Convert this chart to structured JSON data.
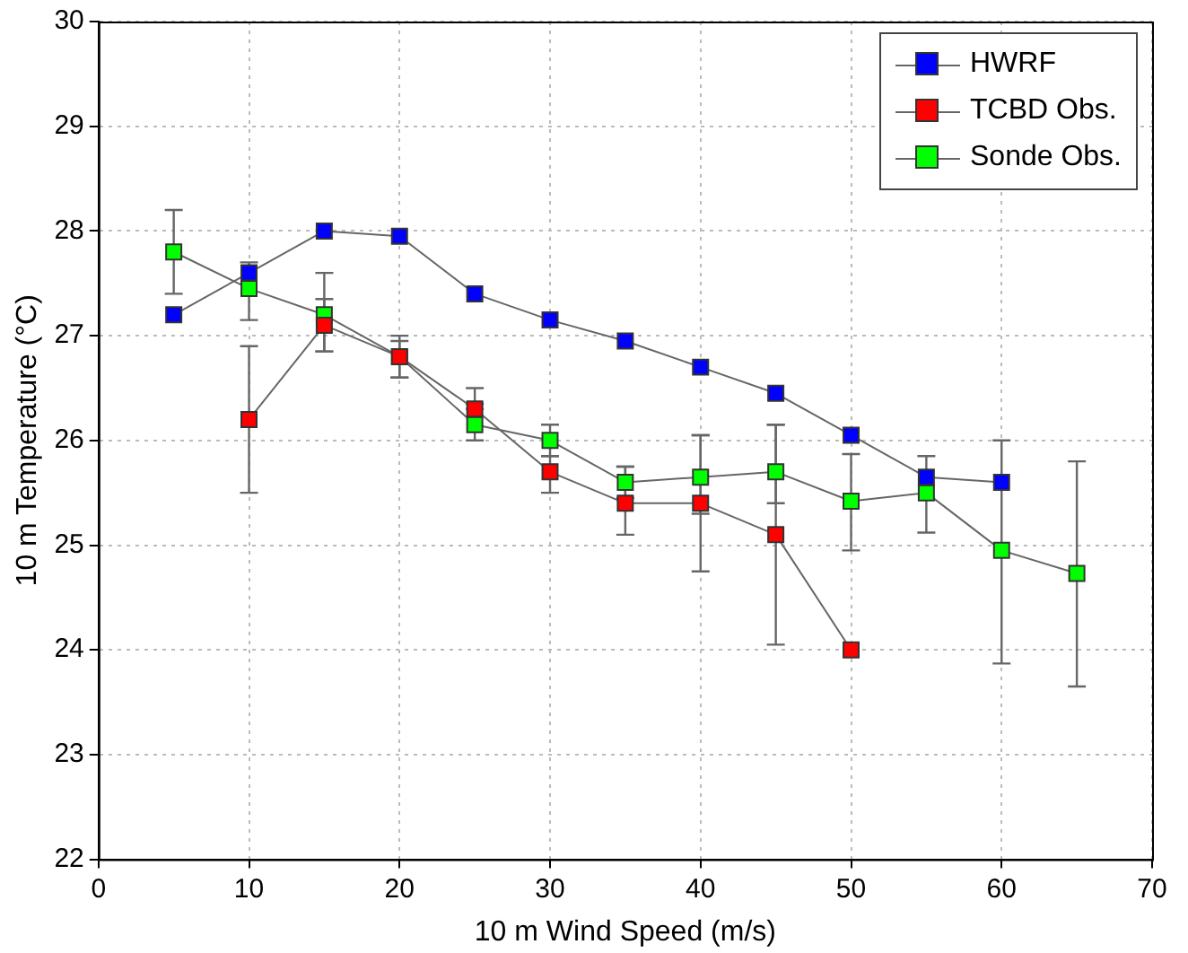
{
  "chart_data": {
    "type": "line",
    "xlabel": "10 m Wind Speed (m/s)",
    "ylabel": "10 m Temperature (°C)",
    "xlim": [
      0,
      70
    ],
    "xticks": [
      0,
      10,
      20,
      30,
      40,
      50,
      60,
      70
    ],
    "ylim": [
      22,
      30
    ],
    "yticks": [
      22,
      23,
      24,
      25,
      26,
      27,
      28,
      29,
      30
    ],
    "grid": true,
    "legend": "top right",
    "marker": "square",
    "line_style": "solid",
    "series": [
      {
        "name": "HWRF",
        "color": "#0000ff",
        "x": [
          5,
          10,
          15,
          20,
          25,
          30,
          35,
          40,
          45,
          50,
          55,
          60
        ],
        "values": [
          27.2,
          27.6,
          28.0,
          27.95,
          27.4,
          27.15,
          26.95,
          26.7,
          26.45,
          26.05,
          25.65,
          25.6
        ]
      },
      {
        "name": "TCBD Obs.",
        "color": "#ff0000",
        "x": [
          10,
          15,
          20,
          25,
          30,
          35,
          40,
          45,
          50
        ],
        "values": [
          26.2,
          27.1,
          26.8,
          26.3,
          25.7,
          25.4,
          25.4,
          25.1,
          24.0
        ],
        "errors": [
          [
            25.5,
            26.9
          ],
          [
            26.85,
            27.35
          ],
          [
            26.6,
            27.0
          ],
          [
            26.3,
            26.5
          ],
          [
            25.5,
            25.85
          ],
          [
            25.1,
            25.75
          ],
          [
            24.75,
            26.05
          ],
          [
            24.05,
            26.15
          ],
          null
        ]
      },
      {
        "name": "Sonde Obs.",
        "color": "#00ff00",
        "x": [
          5,
          10,
          15,
          20,
          25,
          30,
          35,
          40,
          45,
          50,
          55,
          60,
          65
        ],
        "values": [
          27.8,
          27.45,
          27.2,
          26.8,
          26.15,
          26.0,
          25.6,
          25.65,
          25.7,
          25.42,
          25.5,
          24.95,
          24.73
        ],
        "errors": [
          [
            27.4,
            28.2
          ],
          [
            27.15,
            27.7
          ],
          [
            26.85,
            27.6
          ],
          [
            26.6,
            26.95
          ],
          [
            26.0,
            26.35
          ],
          [
            25.85,
            26.15
          ],
          [
            25.45,
            25.75
          ],
          [
            25.3,
            26.05
          ],
          [
            25.4,
            26.15
          ],
          [
            24.95,
            25.87
          ],
          [
            25.12,
            25.85
          ],
          [
            23.87,
            26.0
          ],
          [
            23.65,
            25.8
          ]
        ]
      }
    ]
  }
}
